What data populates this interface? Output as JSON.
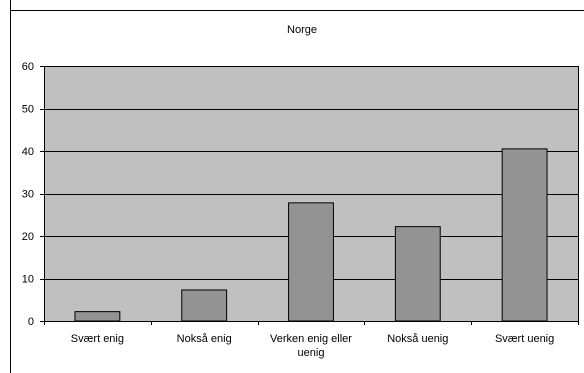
{
  "chart_data": {
    "type": "bar",
    "title": "Norge",
    "xlabel": "",
    "ylabel": "",
    "categories": [
      "Svært enig",
      "Nokså enig",
      "Verken enig eller uenig",
      "Nokså uenig",
      "Svært uenig"
    ],
    "category_lines": [
      [
        "Svært enig"
      ],
      [
        "Nokså enig"
      ],
      [
        "Verken enig eller",
        "uenig"
      ],
      [
        "Nokså uenig"
      ],
      [
        "Svært uenig"
      ]
    ],
    "values": [
      2.2,
      7.3,
      27.8,
      22.2,
      40.5
    ],
    "ylim": [
      0,
      60
    ],
    "yticks": [
      0,
      10,
      20,
      30,
      40,
      50,
      60
    ],
    "grid": true,
    "legend": "none",
    "colors": {
      "plot_background": "#c0c0c0",
      "bar_fill": "#939393",
      "bar_stroke": "#000000",
      "gridline": "#000000",
      "frame": "#000000"
    }
  }
}
